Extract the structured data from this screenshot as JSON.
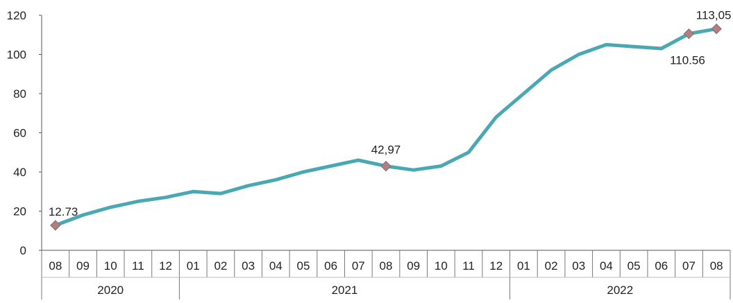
{
  "chart_data": {
    "type": "line",
    "title": "",
    "xlabel": "",
    "ylabel": "",
    "ylim": [
      0,
      120
    ],
    "yticks": [
      0,
      20,
      40,
      60,
      80,
      100,
      120
    ],
    "grid": false,
    "legend": "none",
    "line_color": "#4aa8b5",
    "marker_color": "#b08080",
    "categories": [
      "08",
      "09",
      "10",
      "11",
      "12",
      "01",
      "02",
      "03",
      "04",
      "05",
      "06",
      "07",
      "08",
      "09",
      "10",
      "11",
      "12",
      "01",
      "02",
      "03",
      "04",
      "05",
      "06",
      "07",
      "08"
    ],
    "years": [
      {
        "label": "2020",
        "start": 0,
        "end": 4
      },
      {
        "label": "2021",
        "start": 5,
        "end": 16
      },
      {
        "label": "2022",
        "start": 17,
        "end": 24
      }
    ],
    "series": [
      {
        "values": [
          12.73,
          18,
          22,
          25,
          27,
          30,
          29,
          33,
          36,
          40,
          43,
          46,
          42.97,
          41,
          43,
          50,
          68,
          80,
          92,
          100,
          105,
          104,
          103,
          110.56,
          113.05
        ]
      }
    ],
    "annotations": [
      {
        "index": 0,
        "text": "12.73"
      },
      {
        "index": 12,
        "text": "42,97"
      },
      {
        "index": 23,
        "text": "110.56"
      },
      {
        "index": 24,
        "text": "113,05"
      }
    ]
  }
}
